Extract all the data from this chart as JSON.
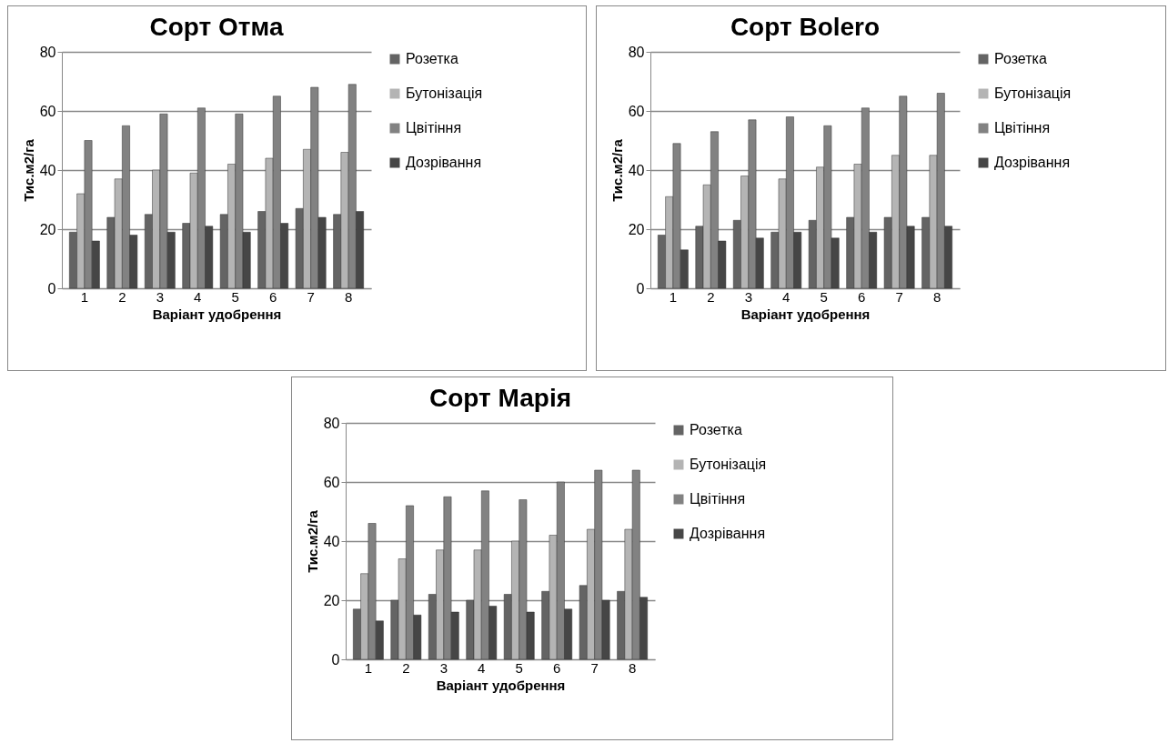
{
  "chart_data": [
    {
      "type": "bar",
      "title": "Сорт Отма",
      "xlabel": "Варіант удобрення",
      "ylabel": "Тис.м2/га",
      "categories": [
        "1",
        "2",
        "3",
        "4",
        "5",
        "6",
        "7",
        "8"
      ],
      "ylim": [
        0,
        80
      ],
      "yticks": [
        0,
        20,
        40,
        60,
        80
      ],
      "grid": "y",
      "legend": "right",
      "series": [
        {
          "name": "Розетка",
          "color": "#646464",
          "values": [
            19,
            24,
            25,
            22,
            25,
            26,
            27,
            25
          ]
        },
        {
          "name": "Бутонізація",
          "color": "#b4b4b4",
          "values": [
            32,
            37,
            40,
            39,
            42,
            44,
            47,
            46
          ]
        },
        {
          "name": "Цвітіння",
          "color": "#828282",
          "values": [
            50,
            55,
            59,
            61,
            59,
            65,
            68,
            69
          ]
        },
        {
          "name": "Дозрівання",
          "color": "#464646",
          "values": [
            16,
            18,
            19,
            21,
            19,
            22,
            24,
            26
          ]
        }
      ]
    },
    {
      "type": "bar",
      "title": "Сорт Bolero",
      "xlabel": "Варіант удобрення",
      "ylabel": "Тис.м2/га",
      "categories": [
        "1",
        "2",
        "3",
        "4",
        "5",
        "6",
        "7",
        "8"
      ],
      "ylim": [
        0,
        80
      ],
      "yticks": [
        0,
        20,
        40,
        60,
        80
      ],
      "grid": "y",
      "legend": "right",
      "series": [
        {
          "name": "Розетка",
          "color": "#646464",
          "values": [
            18,
            21,
            23,
            19,
            23,
            24,
            24,
            24
          ]
        },
        {
          "name": "Бутонізація",
          "color": "#b4b4b4",
          "values": [
            31,
            35,
            38,
            37,
            41,
            42,
            45,
            45
          ]
        },
        {
          "name": "Цвітіння",
          "color": "#828282",
          "values": [
            49,
            53,
            57,
            58,
            55,
            61,
            65,
            66
          ]
        },
        {
          "name": "Дозрівання",
          "color": "#464646",
          "values": [
            13,
            16,
            17,
            19,
            17,
            19,
            21,
            21
          ]
        }
      ]
    },
    {
      "type": "bar",
      "title": "Сорт Марія",
      "xlabel": "Варіант удобрення",
      "ylabel": "Тис.м2/га",
      "categories": [
        "1",
        "2",
        "3",
        "4",
        "5",
        "6",
        "7",
        "8"
      ],
      "ylim": [
        0,
        80
      ],
      "yticks": [
        0,
        20,
        40,
        60,
        80
      ],
      "grid": "y",
      "legend": "right",
      "series": [
        {
          "name": "Розетка",
          "color": "#646464",
          "values": [
            17,
            20,
            22,
            20,
            22,
            23,
            25,
            23
          ]
        },
        {
          "name": "Бутонізація",
          "color": "#b4b4b4",
          "values": [
            29,
            34,
            37,
            37,
            40,
            42,
            44,
            44
          ]
        },
        {
          "name": "Цвітіння",
          "color": "#828282",
          "values": [
            46,
            52,
            55,
            57,
            54,
            60,
            64,
            64
          ]
        },
        {
          "name": "Дозрівання",
          "color": "#464646",
          "values": [
            13,
            15,
            16,
            18,
            16,
            17,
            20,
            21
          ]
        }
      ]
    }
  ]
}
